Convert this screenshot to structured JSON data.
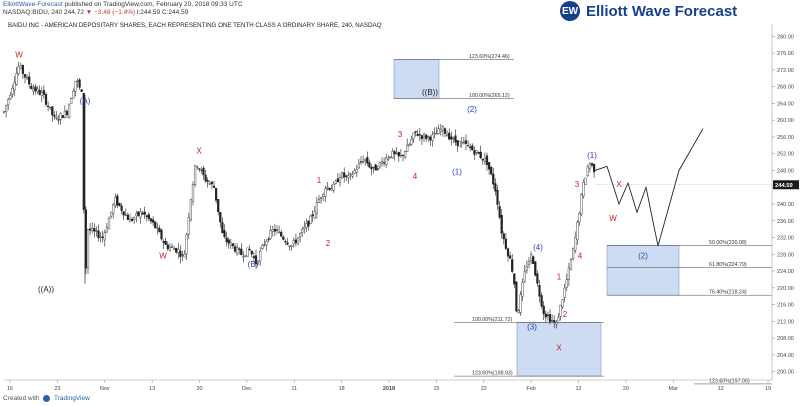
{
  "header": {
    "publisher": "ElliottWave-Forecast",
    "published_text": "published on TradingView.com, February 20, 2018 09:33 UTC",
    "quote_line": "NASDAQ:BIDU, 240  244.72",
    "change": "▼ −3.48 (−1.4%)",
    "ohlc": "l:244.59 C:244.59",
    "symbol_desc": "BAIDU INC - AMERICAN DEPOSITARY SHARES, EACH REPRESENTING ONE TENTH CLASS A ORDINARY SHARE, 240, NASDAQ"
  },
  "logo": {
    "text": "Elliott Wave Forecast",
    "icon": "ewf-logo-icon",
    "color": "#17408b"
  },
  "footer": {
    "created_with": "Created with",
    "brand": "TradingView",
    "icon": "tradingview-icon"
  },
  "colors": {
    "candle": "#222222",
    "wave_red": "#cc1a1a",
    "wave_blue": "#2b3fb0",
    "wave_black": "#222222",
    "zone_fill": "#c9d9f2",
    "zone_stroke": "#6b8cc7",
    "grid": "#eeeeee",
    "price_tag": "#1c1c1c"
  },
  "chart_data": {
    "type": "candlestick",
    "symbol": "NASDAQ:BIDU",
    "interval": "240",
    "ylim": [
      198,
      282
    ],
    "y_ticks": [
      200.0,
      204.0,
      208.0,
      212.0,
      216.0,
      220.0,
      224.0,
      228.0,
      232.0,
      236.0,
      240.0,
      244.0,
      248.0,
      252.0,
      256.0,
      260.0,
      264.0,
      268.0,
      272.0,
      276.0,
      280.0
    ],
    "x_ticks": [
      "16",
      "23",
      "Nov",
      "13",
      "20",
      "Dec",
      "11",
      "18",
      "2018",
      "15",
      "22",
      "Feb",
      "12",
      "20",
      "Mar",
      "12",
      "19"
    ],
    "last_price": "244.59",
    "price_path": [
      [
        0,
        262
      ],
      [
        5,
        273
      ],
      [
        9,
        268
      ],
      [
        13,
        266
      ],
      [
        17,
        260
      ],
      [
        21,
        262
      ],
      [
        24,
        270
      ],
      [
        26,
        266
      ],
      [
        27,
        221
      ],
      [
        28,
        234
      ],
      [
        33,
        232
      ],
      [
        37,
        241
      ],
      [
        42,
        236
      ],
      [
        46,
        238
      ],
      [
        50,
        235
      ],
      [
        54,
        230
      ],
      [
        58,
        229
      ],
      [
        60,
        227
      ],
      [
        62,
        240
      ],
      [
        64,
        250
      ],
      [
        67,
        246
      ],
      [
        70,
        244
      ],
      [
        73,
        232
      ],
      [
        76,
        230
      ],
      [
        79,
        228
      ],
      [
        82,
        229
      ],
      [
        84,
        226
      ],
      [
        87,
        231
      ],
      [
        90,
        234
      ],
      [
        93,
        232
      ],
      [
        96,
        230
      ],
      [
        99,
        233
      ],
      [
        102,
        236
      ],
      [
        105,
        241
      ],
      [
        107,
        244
      ],
      [
        110,
        244
      ],
      [
        112,
        247
      ],
      [
        115,
        246
      ],
      [
        118,
        249
      ],
      [
        120,
        251
      ],
      [
        123,
        248
      ],
      [
        126,
        250
      ],
      [
        129,
        252
      ],
      [
        132,
        251
      ],
      [
        135,
        254
      ],
      [
        137,
        257
      ],
      [
        140,
        256
      ],
      [
        143,
        256
      ],
      [
        146,
        258
      ],
      [
        150,
        255
      ],
      [
        154,
        254
      ],
      [
        158,
        252
      ],
      [
        161,
        250
      ],
      [
        164,
        243
      ],
      [
        166,
        233
      ],
      [
        169,
        226
      ],
      [
        170,
        222
      ],
      [
        171,
        213
      ],
      [
        174,
        225
      ],
      [
        176,
        228
      ],
      [
        178,
        220
      ],
      [
        180,
        214
      ],
      [
        183,
        212
      ],
      [
        184,
        211
      ],
      [
        186,
        217
      ],
      [
        188,
        223
      ],
      [
        190,
        230
      ],
      [
        193,
        244
      ],
      [
        195,
        250
      ],
      [
        197,
        248
      ]
    ],
    "projection": [
      [
        197,
        248
      ],
      [
        201,
        249
      ],
      [
        205,
        240
      ],
      [
        208,
        245
      ],
      [
        211,
        238
      ],
      [
        214,
        244
      ],
      [
        218,
        230
      ],
      [
        225,
        248
      ],
      [
        233,
        258
      ]
    ],
    "wave_labels": [
      {
        "text": "W",
        "x": 5,
        "y": 275,
        "color": "red"
      },
      {
        "text": "(A)",
        "x": 27,
        "y": 264,
        "color": "blue"
      },
      {
        "text": "((A))",
        "x": 14,
        "y": 219,
        "color": "black"
      },
      {
        "text": "X",
        "x": 65,
        "y": 252,
        "color": "red"
      },
      {
        "text": "W",
        "x": 53,
        "y": 227,
        "color": "red"
      },
      {
        "text": "(B)",
        "x": 83,
        "y": 225,
        "color": "blue"
      },
      {
        "text": "1",
        "x": 105,
        "y": 245,
        "color": "red"
      },
      {
        "text": "2",
        "x": 108,
        "y": 230,
        "color": "red"
      },
      {
        "text": "3",
        "x": 132,
        "y": 256,
        "color": "red"
      },
      {
        "text": "4",
        "x": 137,
        "y": 246,
        "color": "red"
      },
      {
        "text": "((B))",
        "x": 142,
        "y": 266,
        "color": "black"
      },
      {
        "text": "(1)",
        "x": 151,
        "y": 247,
        "color": "blue"
      },
      {
        "text": "(2)",
        "x": 156,
        "y": 262,
        "color": "blue"
      },
      {
        "text": "(3)",
        "x": 176,
        "y": 210,
        "color": "blue"
      },
      {
        "text": "(4)",
        "x": 178,
        "y": 229,
        "color": "blue"
      },
      {
        "text": "X",
        "x": 185,
        "y": 205,
        "color": "red"
      },
      {
        "text": "1",
        "x": 185,
        "y": 222,
        "color": "red"
      },
      {
        "text": "2",
        "x": 187,
        "y": 213,
        "color": "red"
      },
      {
        "text": "3",
        "x": 191,
        "y": 244,
        "color": "red"
      },
      {
        "text": "4",
        "x": 192,
        "y": 227,
        "color": "red"
      },
      {
        "text": "(1)",
        "x": 196,
        "y": 251,
        "color": "blue"
      },
      {
        "text": "X",
        "x": 205,
        "y": 244,
        "color": "red"
      },
      {
        "text": "W",
        "x": 203,
        "y": 236,
        "color": "red"
      },
      {
        "text": "(2)",
        "x": 213,
        "y": 227,
        "color": "blue"
      }
    ],
    "zones": [
      {
        "name": "b-target-zone",
        "x0": 130,
        "x1": 145,
        "y_top": 274.46,
        "y_bottom": 265.12
      },
      {
        "name": "wave3-target-zone",
        "x0": 171,
        "x1": 199,
        "y_top": 211.72,
        "y_bottom": 198.93
      },
      {
        "name": "wave2-target-zone",
        "x0": 201,
        "x1": 225,
        "y_top": 230.08,
        "y_bottom": 218.24
      }
    ],
    "fib_levels": [
      {
        "label": "123.60%(274.46)",
        "price": 274.46,
        "x0": 130,
        "x1": 170,
        "text_x": 155
      },
      {
        "label": "100.00%(265.12)",
        "price": 265.12,
        "x0": 130,
        "x1": 170,
        "text_x": 155
      },
      {
        "label": "100.00%(211.72)",
        "price": 211.72,
        "x0": 150,
        "x1": 200,
        "text_x": 156
      },
      {
        "label": "123.60%(198.93)",
        "price": 198.93,
        "x0": 150,
        "x1": 200,
        "text_x": 156
      },
      {
        "label": "50.00%(230.08)",
        "price": 230.08,
        "x0": 201,
        "x1": 256,
        "text_x": 235
      },
      {
        "label": "61.80%(224.79)",
        "price": 224.79,
        "x0": 201,
        "x1": 256,
        "text_x": 235
      },
      {
        "label": "76.40%(218.24)",
        "price": 218.24,
        "x0": 201,
        "x1": 256,
        "text_x": 235
      },
      {
        "label": "123.60%(197.06)",
        "price": 197.06,
        "x0": 230,
        "x1": 256,
        "text_x": 235
      }
    ]
  }
}
